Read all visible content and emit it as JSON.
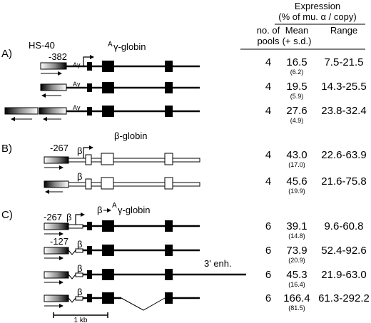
{
  "header": {
    "expression_title": "Expression",
    "expression_unit": "(% of mu. α / copy)",
    "pools_col": [
      "no. of",
      "pools"
    ],
    "mean_col": [
      "Mean",
      "(+ s.d.)"
    ],
    "range_col": "Range"
  },
  "panels": [
    {
      "label": "A)",
      "region_label": "HS-40",
      "gene_title_sup": "A",
      "gene_title": "γ-globin",
      "promoter_pos": "-382",
      "rows": [
        {
          "promoter": "Aγ",
          "pools": "4",
          "mean": "16.5",
          "sd": "(6.2)",
          "range": "7.5-21.5"
        },
        {
          "promoter": "Aγ",
          "pools": "4",
          "mean": "19.5",
          "sd": "(5.9)",
          "range": "14.3-25.5"
        },
        {
          "promoter": "Aγ",
          "pools": "4",
          "mean": "27.6",
          "sd": "(4.9)",
          "range": "23.8-32.4"
        }
      ]
    },
    {
      "label": "B)",
      "gene_title": "β-globin",
      "promoter_pos": "-267",
      "rows": [
        {
          "promoter": "β",
          "pools": "4",
          "mean": "43.0",
          "sd": "(17.0)",
          "range": "22.6-63.9"
        },
        {
          "promoter": "β",
          "pools": "4",
          "mean": "45.6",
          "sd": "(19.9)",
          "range": "21.6-75.8"
        }
      ]
    },
    {
      "label": "C)",
      "gene_title_pre": "β",
      "gene_title_sup": "A",
      "gene_title": "γ-globin",
      "rows": [
        {
          "promoter": "β",
          "pos": "-267",
          "pools": "6",
          "mean": "39.1",
          "sd": "(14.8)",
          "range": "9.6-60.8"
        },
        {
          "promoter": "β",
          "pos": "-127",
          "pools": "6",
          "mean": "73.9",
          "sd": "(20.9)",
          "range": "52.4-92.6"
        },
        {
          "promoter": "β",
          "pools": "6",
          "mean": "45.3",
          "sd": "(16.4)",
          "range": "21.9-63.0",
          "enhancer": "3' enh."
        },
        {
          "promoter": "β",
          "pools": "6",
          "mean": "166.4",
          "sd": "(81.5)",
          "range": "61.3-292.2"
        }
      ]
    }
  ],
  "scale_bar": "1 kb"
}
